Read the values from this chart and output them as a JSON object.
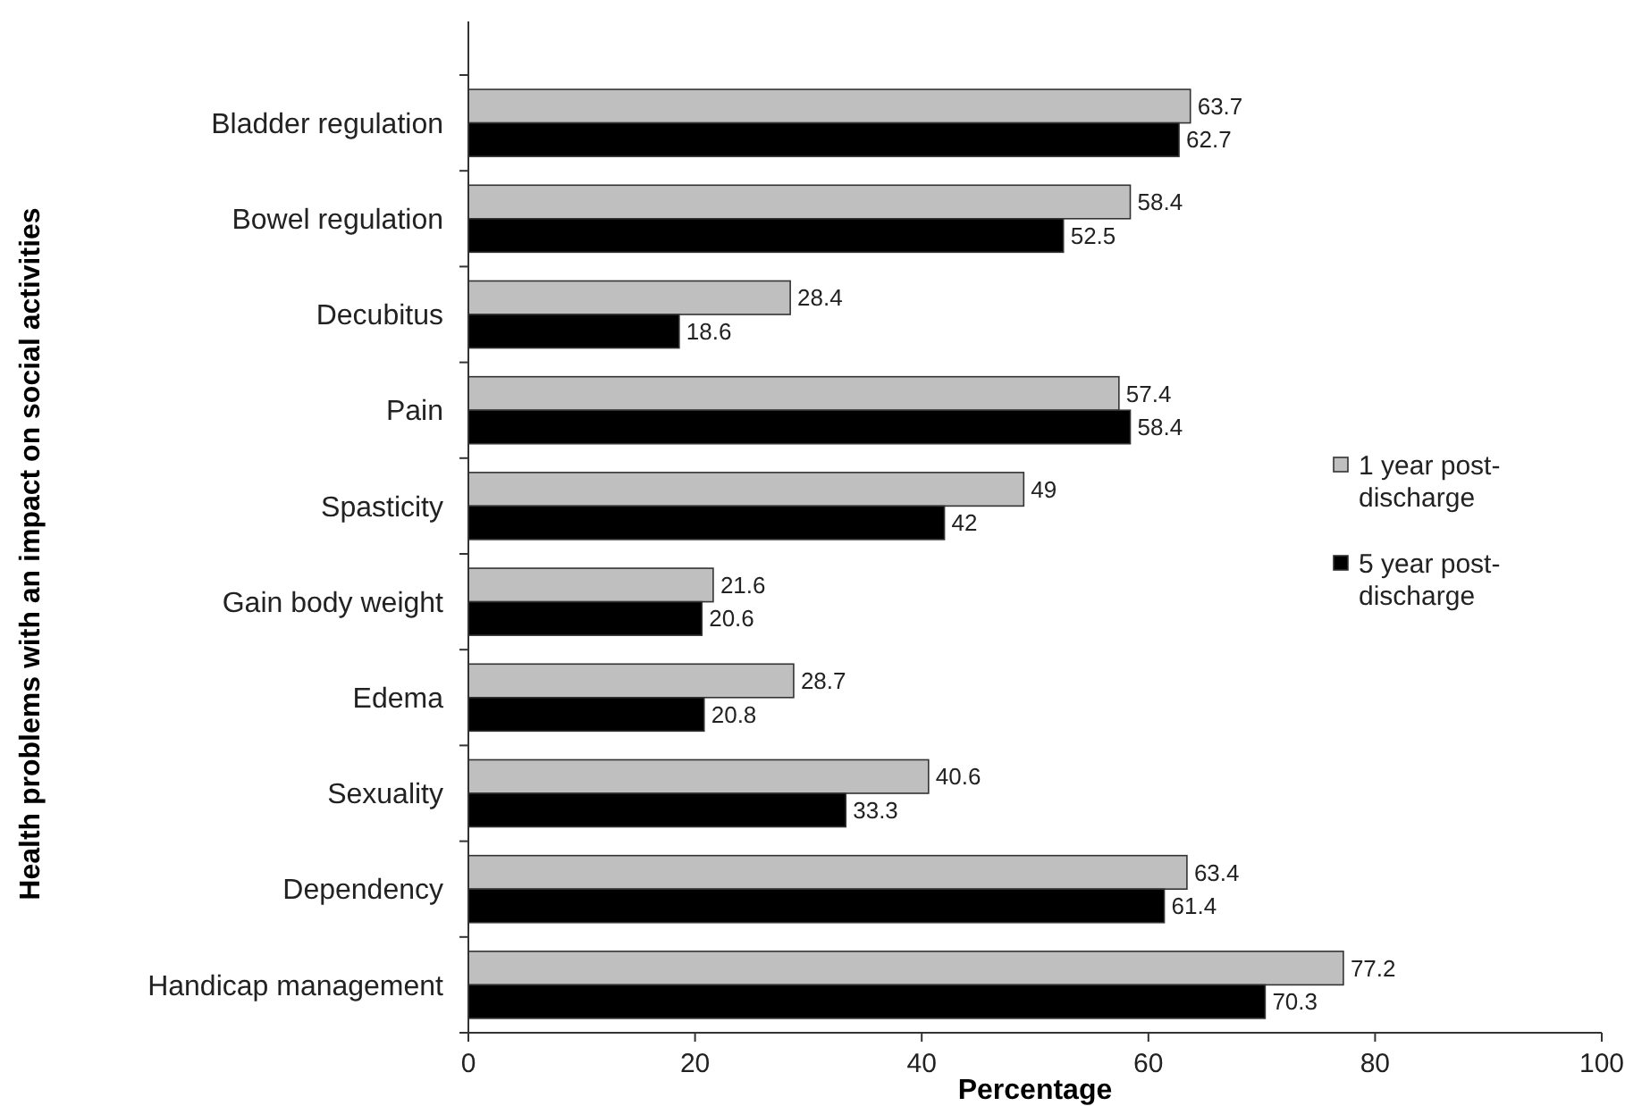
{
  "chart_data": {
    "type": "bar",
    "orientation": "horizontal",
    "xlabel": "Percentage",
    "ylabel": "Health problems with an impact on social activities",
    "categories": [
      "Bladder regulation",
      "Bowel regulation",
      "Decubitus",
      "Pain",
      "Spasticity",
      "Gain body weight",
      "Edema",
      "Sexuality",
      "Dependency",
      "Handicap management"
    ],
    "series": [
      {
        "name": "1 year post-discharge",
        "color": "#bfbfbf",
        "values": [
          63.7,
          58.4,
          28.4,
          57.4,
          49,
          21.6,
          28.7,
          40.6,
          63.4,
          77.2
        ]
      },
      {
        "name": "5 year post-discharge",
        "color": "#000000",
        "values": [
          62.7,
          52.5,
          18.6,
          58.4,
          42,
          20.6,
          20.8,
          33.3,
          61.4,
          70.3
        ]
      }
    ],
    "xlim": [
      0,
      100
    ],
    "xticks": [
      0,
      20,
      40,
      60,
      80,
      100
    ],
    "data_labels": true,
    "legend": "right",
    "grid": false
  }
}
